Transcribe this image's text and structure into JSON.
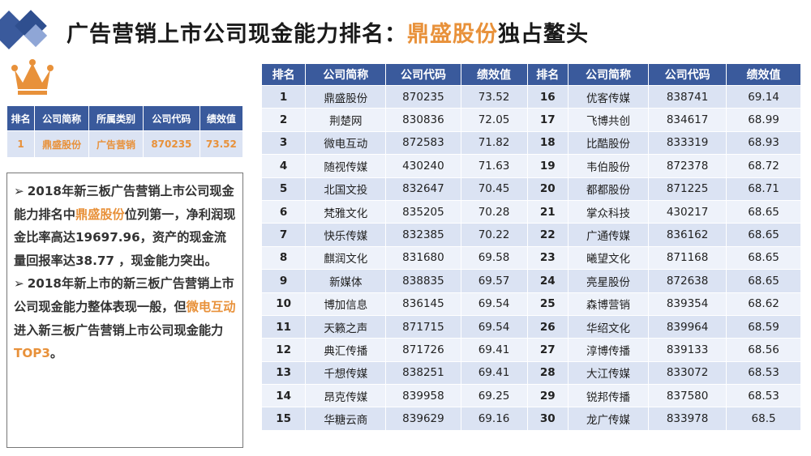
{
  "title": {
    "prefix": "广告营销上市公司现金能力排名：",
    "highlight": "鼎盛股份",
    "suffix": "独占鳌头"
  },
  "colors": {
    "header_blue": "#3a5a9c",
    "accent_orange": "#e8913a",
    "row_light": "#dbe3f3"
  },
  "top_table": {
    "headers": [
      "排名",
      "公司简称",
      "所属类别",
      "公司代码",
      "绩效值"
    ],
    "row": [
      "1",
      "鼎盛股份",
      "广告营销",
      "870235",
      "73.52"
    ]
  },
  "notes": {
    "b1_p1": "2018年新三板广告营销上市公司现金能力排名中",
    "b1_hl": "鼎盛股份",
    "b1_p2": "位列第一，净利润现金比率高达19697.96，资产的现金流量回报率达38.77 ，现金能力突出。",
    "b2_p1": "2018年新上市的新三板广告营销上市公司现金能力整体表现一般，但",
    "b2_hl": "微电互动",
    "b2_p2": "进入新三板广告营销上市公司现金能力",
    "b2_hl2": "TOP3",
    "b2_p3": "。"
  },
  "ranking_table": {
    "headers": [
      "排名",
      "公司简称",
      "公司代码",
      "绩效值",
      "排名",
      "公司简称",
      "公司代码",
      "绩效值"
    ],
    "rows": [
      [
        "1",
        "鼎盛股份",
        "870235",
        "73.52",
        "16",
        "优客传媒",
        "838741",
        "69.14"
      ],
      [
        "2",
        "荆楚网",
        "830836",
        "72.05",
        "17",
        "飞博共创",
        "834617",
        "68.99"
      ],
      [
        "3",
        "微电互动",
        "872583",
        "71.82",
        "18",
        "比酷股份",
        "833319",
        "68.93"
      ],
      [
        "4",
        "随视传媒",
        "430240",
        "71.63",
        "19",
        "韦伯股份",
        "872378",
        "68.72"
      ],
      [
        "5",
        "北国文投",
        "832647",
        "70.45",
        "20",
        "都都股份",
        "871225",
        "68.71"
      ],
      [
        "6",
        "梵雅文化",
        "835205",
        "70.28",
        "21",
        "掌众科技",
        "430217",
        "68.65"
      ],
      [
        "7",
        "快乐传媒",
        "832385",
        "70.22",
        "22",
        "广通传媒",
        "836162",
        "68.65"
      ],
      [
        "8",
        "麒润文化",
        "831680",
        "69.58",
        "23",
        "曦望文化",
        "871168",
        "68.65"
      ],
      [
        "9",
        "新媒体",
        "838835",
        "69.57",
        "24",
        "亮星股份",
        "872638",
        "68.65"
      ],
      [
        "10",
        "博加信息",
        "836145",
        "69.54",
        "25",
        "森博营销",
        "839354",
        "68.62"
      ],
      [
        "11",
        "天籁之声",
        "871715",
        "69.54",
        "26",
        "华绍文化",
        "839964",
        "68.59"
      ],
      [
        "12",
        "典汇传播",
        "871726",
        "69.41",
        "27",
        "淳博传播",
        "839133",
        "68.56"
      ],
      [
        "13",
        "千想传媒",
        "838251",
        "69.41",
        "28",
        "大江传媒",
        "833072",
        "68.53"
      ],
      [
        "14",
        "昂克传媒",
        "839958",
        "69.25",
        "29",
        "锐邦传播",
        "837580",
        "68.53"
      ],
      [
        "15",
        "华糖云商",
        "839629",
        "69.16",
        "30",
        "龙广传媒",
        "833978",
        "68.5"
      ]
    ]
  }
}
